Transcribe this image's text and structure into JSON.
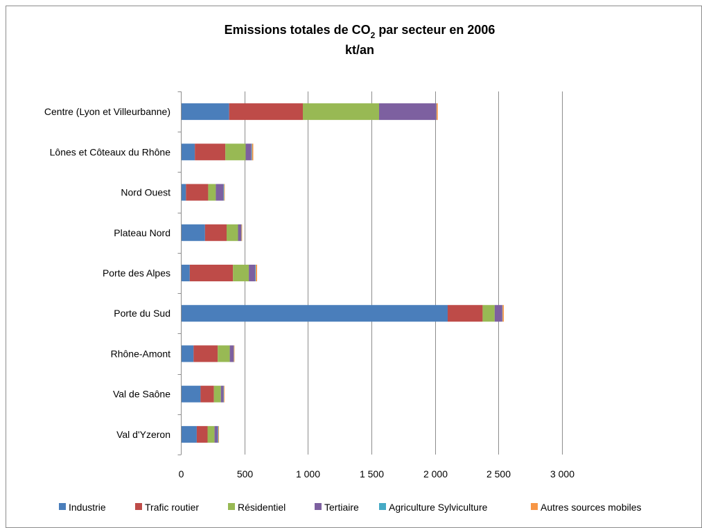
{
  "chart_data": {
    "type": "bar",
    "orientation": "horizontal",
    "stacked": true,
    "title": {
      "line1_main": "Emissions totales de CO",
      "line1_sub": "2",
      "line1_rest": " par secteur en 2006",
      "line2": "kt/an"
    },
    "xlabel": "",
    "ylabel": "",
    "xlim": [
      0,
      3000
    ],
    "x_ticks": [
      {
        "value": 0,
        "label": "0"
      },
      {
        "value": 500,
        "label": "500"
      },
      {
        "value": 1000,
        "label": "1 000"
      },
      {
        "value": 1500,
        "label": "1 500"
      },
      {
        "value": 2000,
        "label": "2 000"
      },
      {
        "value": 2500,
        "label": "2 500"
      },
      {
        "value": 3000,
        "label": "3 000"
      }
    ],
    "grid": true,
    "legend_position": "bottom",
    "categories": [
      "Centre (Lyon et Villeurbanne)",
      "Lônes et Côteaux du Rhône",
      "Nord Ouest",
      "Plateau Nord",
      "Porte des Alpes",
      "Porte du Sud",
      "Rhône-Amont",
      "Val de Saône",
      "Val d'Yzeron"
    ],
    "series": [
      {
        "name": "Industrie",
        "color": "#4a7ebb",
        "values": [
          380,
          110,
          40,
          190,
          70,
          2100,
          100,
          155,
          125
        ]
      },
      {
        "name": "Trafic routier",
        "color": "#be4b48",
        "values": [
          580,
          240,
          175,
          170,
          340,
          275,
          190,
          105,
          85
        ]
      },
      {
        "name": "Résidentiel",
        "color": "#98b954",
        "values": [
          600,
          160,
          60,
          90,
          125,
          95,
          95,
          55,
          55
        ]
      },
      {
        "name": "Tertiaire",
        "color": "#7d60a0",
        "values": [
          450,
          45,
          60,
          25,
          50,
          60,
          30,
          20,
          25
        ]
      },
      {
        "name": "Agriculture Sylviculture",
        "color": "#46aac5",
        "values": [
          2,
          5,
          5,
          2,
          5,
          2,
          2,
          3,
          5
        ]
      },
      {
        "name": "Autres sources mobiles",
        "color": "#f79646",
        "values": [
          10,
          10,
          5,
          5,
          10,
          10,
          5,
          5,
          5
        ]
      }
    ]
  }
}
